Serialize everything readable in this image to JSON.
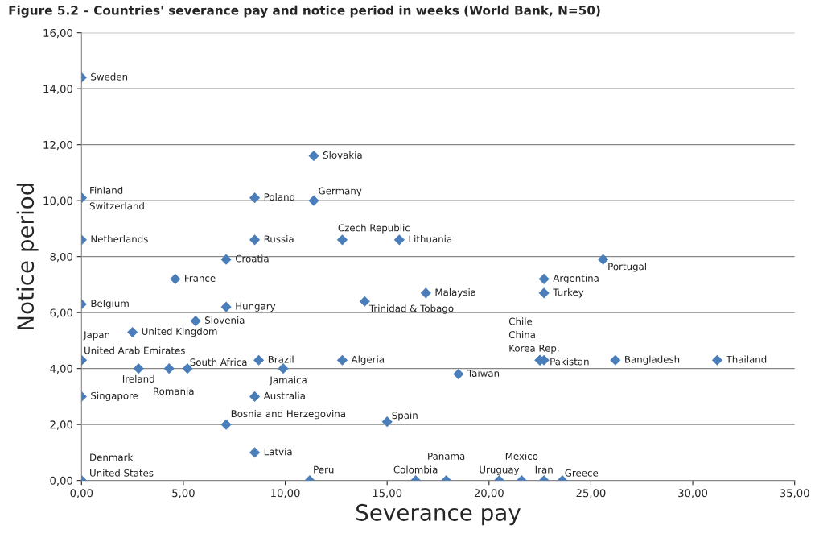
{
  "chart_data": {
    "type": "scatter",
    "title": "Figure 5.2 – Countries' severance pay and notice period in weeks (World Bank, N=50)",
    "xlabel": "Severance pay",
    "ylabel": "Notice period",
    "xlim": [
      0,
      35
    ],
    "ylim": [
      0,
      16
    ],
    "xticks": [
      {
        "value": 0,
        "label": "0,00"
      },
      {
        "value": 5,
        "label": "5,00"
      },
      {
        "value": 10,
        "label": "10,00"
      },
      {
        "value": 15,
        "label": "15,00"
      },
      {
        "value": 20,
        "label": "20,00"
      },
      {
        "value": 25,
        "label": "25,00"
      },
      {
        "value": 30,
        "label": "30,00"
      },
      {
        "value": 35,
        "label": "35,00"
      }
    ],
    "yticks": [
      {
        "value": 0,
        "label": "0,00"
      },
      {
        "value": 2,
        "label": "2,00"
      },
      {
        "value": 4,
        "label": "4,00"
      },
      {
        "value": 6,
        "label": "6,00"
      },
      {
        "value": 8,
        "label": "8,00"
      },
      {
        "value": 10,
        "label": "10,00"
      },
      {
        "value": 12,
        "label": "12,00"
      },
      {
        "value": 14,
        "label": "14,00"
      },
      {
        "value": 16,
        "label": "16,00"
      }
    ],
    "grid": "y",
    "marker": "diamond",
    "series": [
      {
        "color": "#4a7ebb",
        "x": [
          0,
          0,
          0,
          0,
          0,
          0,
          0,
          0,
          0,
          0,
          11.4,
          8.5,
          11.4,
          8.5,
          12.8,
          15.6,
          7.1,
          4.6,
          7.1,
          13.9,
          16.9,
          22.7,
          22.7,
          25.6,
          5.6,
          2.5,
          2.8,
          4.3,
          5.2,
          8.7,
          9.9,
          12.8,
          18.5,
          22.5,
          22.5,
          22.5,
          22.7,
          26.2,
          31.2,
          8.5,
          7.1,
          15.0,
          8.5,
          11.2,
          16.4,
          17.9,
          20.5,
          21.6,
          22.7,
          23.6
        ],
        "values": [
          14.4,
          10.1,
          10.1,
          8.6,
          6.3,
          4.3,
          4.3,
          3.0,
          0,
          0,
          11.6,
          10.1,
          10.0,
          8.6,
          8.6,
          8.6,
          7.9,
          7.2,
          6.2,
          6.4,
          6.7,
          7.2,
          6.7,
          7.9,
          5.7,
          5.3,
          4.0,
          4.0,
          4.0,
          4.3,
          4.0,
          4.3,
          3.8,
          4.3,
          4.3,
          4.3,
          4.3,
          4.3,
          4.3,
          3.0,
          2.0,
          2.1,
          1.0,
          0,
          0,
          0,
          0,
          0,
          0,
          0
        ],
        "value_labels": [
          "Sweden",
          "Finland",
          "Switzerland",
          "Netherlands",
          "Belgium",
          "Japan",
          "United Arab Emirates",
          "Singapore",
          "Denmark",
          "United States",
          "Slovakia",
          "Poland",
          "Germany",
          "Russia",
          "Czech Republic",
          "Lithuania",
          "Croatia",
          "France",
          "Hungary",
          "Trinidad & Tobago",
          "Malaysia",
          "Argentina",
          "Turkey",
          "Portugal",
          "Slovenia",
          "United Kingdom",
          "Ireland",
          "Romania",
          "South Africa",
          "Brazil",
          "Jamaica",
          "Algeria",
          "Taiwan",
          "Chile",
          "China",
          "Korea Rep.",
          "Pakistan",
          "Bangladesh",
          "Thailand",
          "Australia",
          "Bosnia and Herzegovina",
          "Spain",
          "Latvia",
          "Peru",
          "Colombia",
          "Panama",
          "Uruguay",
          "Mexico",
          "Iran",
          "Greece"
        ]
      }
    ]
  }
}
